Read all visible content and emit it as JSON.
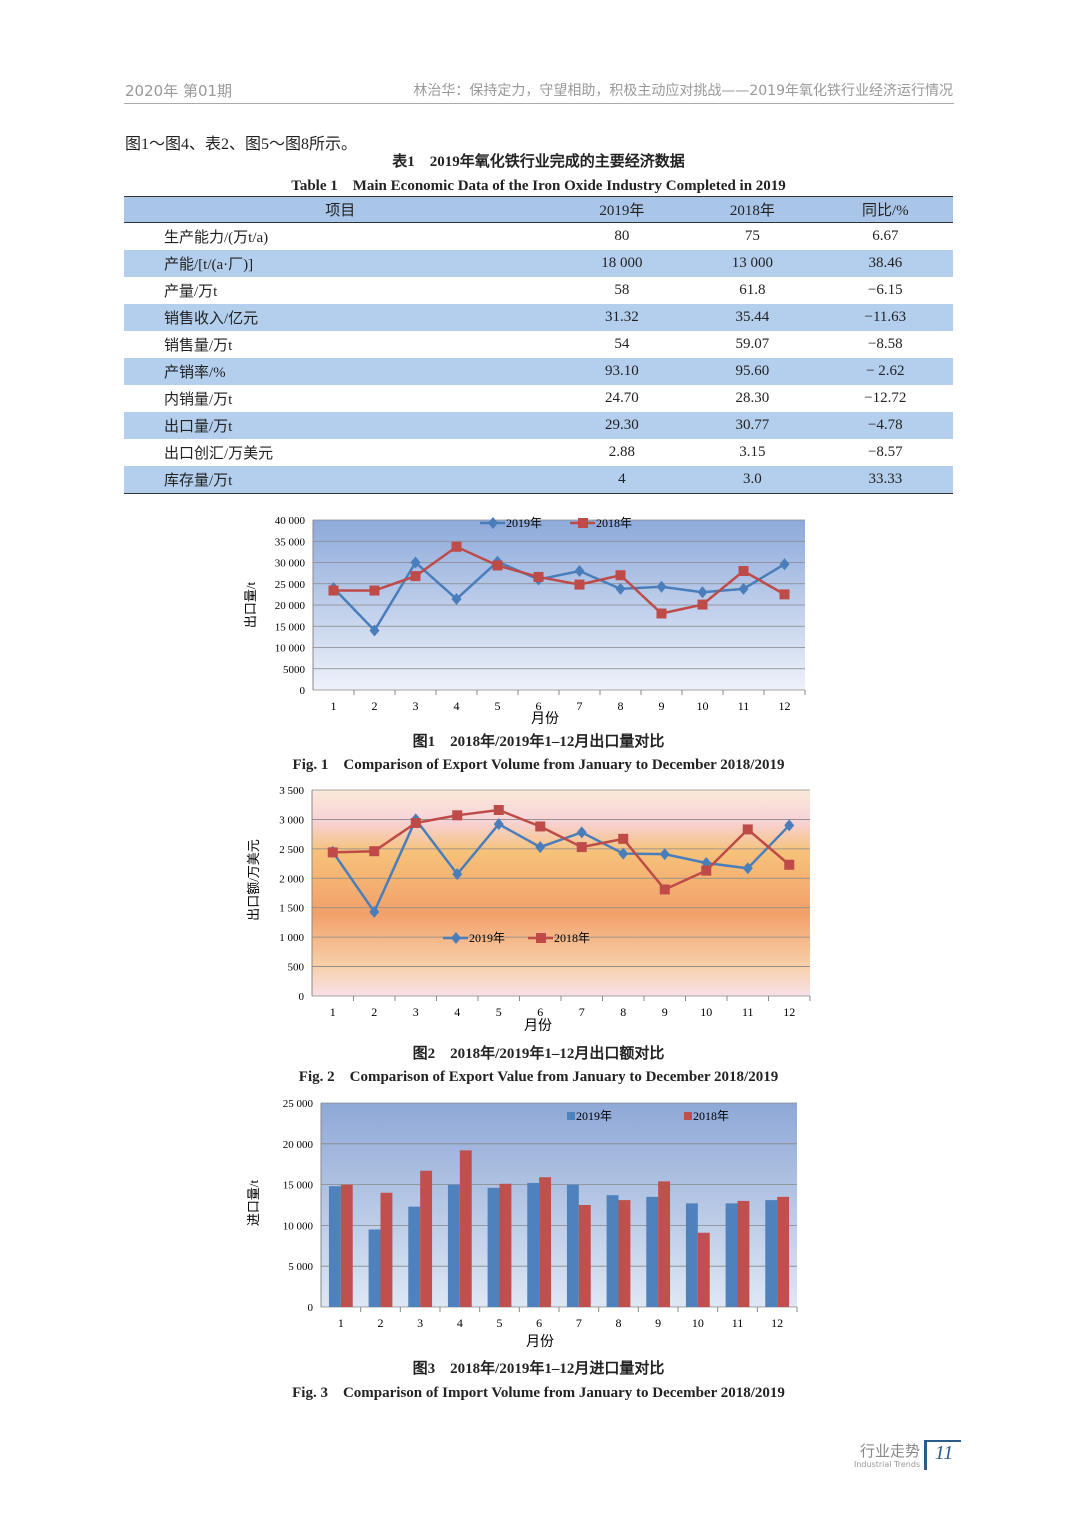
{
  "header": {
    "issue": "2020年 第01期",
    "running_title": "林治华：保持定力，守望相助，积极主动应对挑战——2019年氧化铁行业经济运行情况"
  },
  "intro_text": "图1～图4、表2、图5～图8所示。",
  "table1": {
    "title_cn": "表1　2019年氧化铁行业完成的主要经济数据",
    "title_en": "Table 1　Main Economic Data of the Iron Oxide Industry Completed in 2019",
    "columns": [
      "项目",
      "2019年",
      "2018年",
      "同比/%"
    ],
    "rows": [
      [
        "生产能力/(万t/a)",
        "80",
        "75",
        "6.67"
      ],
      [
        "产能/[t/(a·厂)]",
        "18 000",
        "13 000",
        "38.46"
      ],
      [
        "产量/万t",
        "58",
        "61.8",
        "−6.15"
      ],
      [
        "销售收入/亿元",
        "31.32",
        "35.44",
        "−11.63"
      ],
      [
        "销售量/万t",
        "54",
        "59.07",
        "−8.58"
      ],
      [
        "产销率/%",
        "93.10",
        "95.60",
        "− 2.62"
      ],
      [
        "内销量/万t",
        "24.70",
        "28.30",
        "−12.72"
      ],
      [
        "出口量/万t",
        "29.30",
        "30.77",
        "−4.78"
      ],
      [
        "出口创汇/万美元",
        "2.88",
        "3.15",
        "−8.57"
      ],
      [
        "库存量/万t",
        "4",
        "3.0",
        "33.33"
      ]
    ]
  },
  "chart_data": [
    {
      "type": "line",
      "caption_cn": "图1　2018年/2019年1–12月出口量对比",
      "caption_en": "Fig. 1　Comparison of Export Volume from January to December 2018/2019",
      "xlabel": "月份",
      "ylabel": "出口量/t",
      "ylim": [
        0,
        40000
      ],
      "yticks": [
        "0",
        "5000",
        "10 000",
        "15 000",
        "20 000",
        "25 000",
        "30 000",
        "35 000",
        "40 000"
      ],
      "categories": [
        "1",
        "2",
        "3",
        "4",
        "5",
        "6",
        "7",
        "8",
        "9",
        "10",
        "11",
        "12"
      ],
      "legend": "top-center",
      "grid": true,
      "series": [
        {
          "name": "2019年",
          "color": "#4a7ebb",
          "marker": "diamond",
          "values": [
            24000,
            14000,
            30000,
            21400,
            30200,
            26000,
            28000,
            23800,
            24300,
            23000,
            23800,
            29600
          ]
        },
        {
          "name": "2018年",
          "color": "#be4b48",
          "marker": "square",
          "values": [
            23400,
            23400,
            26800,
            33700,
            29300,
            26600,
            24800,
            27000,
            18000,
            20100,
            28000,
            22500
          ]
        }
      ]
    },
    {
      "type": "line",
      "caption_cn": "图2　2018年/2019年1–12月出口额对比",
      "caption_en": "Fig. 2　Comparison of Export Value from January to December 2018/2019",
      "xlabel": "月份",
      "ylabel": "出口额/万美元",
      "ylim": [
        0,
        3500
      ],
      "yticks": [
        "0",
        "500",
        "1 000",
        "1 500",
        "2 000",
        "2 500",
        "3 000",
        "3 500"
      ],
      "categories": [
        "1",
        "2",
        "3",
        "4",
        "5",
        "6",
        "7",
        "8",
        "9",
        "10",
        "11",
        "12"
      ],
      "legend": "center",
      "grid": true,
      "series": [
        {
          "name": "2019年",
          "color": "#4a7ebb",
          "marker": "diamond",
          "values": [
            2450,
            1430,
            3000,
            2070,
            2920,
            2530,
            2780,
            2420,
            2410,
            2260,
            2170,
            2900
          ]
        },
        {
          "name": "2018年",
          "color": "#be4b48",
          "marker": "square",
          "values": [
            2440,
            2460,
            2940,
            3070,
            3160,
            2880,
            2530,
            2670,
            1810,
            2130,
            2830,
            2230
          ]
        }
      ]
    },
    {
      "type": "bar",
      "caption_cn": "图3　2018年/2019年1–12月进口量对比",
      "caption_en": "Fig. 3　Comparison of Import Volume from January to December 2018/2019",
      "xlabel": "月份",
      "ylabel": "进口量/t",
      "ylim": [
        0,
        25000
      ],
      "yticks": [
        "0",
        "5 000",
        "10 000",
        "15 000",
        "20 000",
        "25 000"
      ],
      "categories": [
        "1",
        "2",
        "3",
        "4",
        "5",
        "6",
        "7",
        "8",
        "9",
        "10",
        "11",
        "12"
      ],
      "legend": "top-right",
      "grid": true,
      "series": [
        {
          "name": "2019年",
          "color": "#4f81bd",
          "values": [
            14800,
            9500,
            12300,
            15000,
            14600,
            15200,
            15000,
            13700,
            13500,
            12700,
            12700,
            13100
          ]
        },
        {
          "name": "2018年",
          "color": "#c0504d",
          "values": [
            15000,
            14000,
            16700,
            19200,
            15100,
            15900,
            12500,
            13100,
            15400,
            9100,
            13000,
            13500
          ]
        }
      ]
    }
  ],
  "footer": {
    "section_cn": "行业走势",
    "section_en": "Industrial Trends",
    "page": "11"
  }
}
